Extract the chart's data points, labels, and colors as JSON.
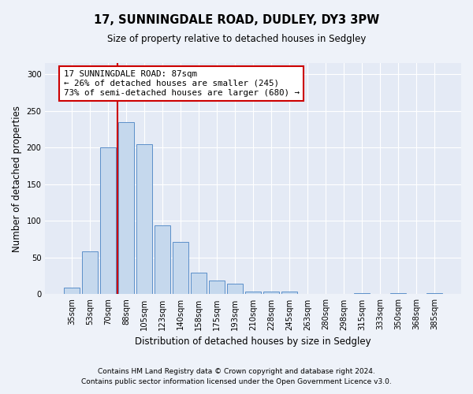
{
  "title1": "17, SUNNINGDALE ROAD, DUDLEY, DY3 3PW",
  "title2": "Size of property relative to detached houses in Sedgley",
  "xlabel": "Distribution of detached houses by size in Sedgley",
  "ylabel": "Number of detached properties",
  "categories": [
    "35sqm",
    "53sqm",
    "70sqm",
    "88sqm",
    "105sqm",
    "123sqm",
    "140sqm",
    "158sqm",
    "175sqm",
    "193sqm",
    "210sqm",
    "228sqm",
    "245sqm",
    "263sqm",
    "280sqm",
    "298sqm",
    "315sqm",
    "333sqm",
    "350sqm",
    "368sqm",
    "385sqm"
  ],
  "values": [
    9,
    58,
    200,
    234,
    204,
    94,
    71,
    29,
    19,
    14,
    4,
    4,
    4,
    0,
    0,
    0,
    2,
    0,
    2,
    0,
    2
  ],
  "bar_color": "#c5d8ed",
  "bar_edge_color": "#5b8fc9",
  "highlight_index": 3,
  "highlight_line_color": "#cc0000",
  "annotation_text": "17 SUNNINGDALE ROAD: 87sqm\n← 26% of detached houses are smaller (245)\n73% of semi-detached houses are larger (680) →",
  "annotation_box_color": "#ffffff",
  "annotation_box_edge": "#cc0000",
  "ylim": [
    0,
    315
  ],
  "yticks": [
    0,
    50,
    100,
    150,
    200,
    250,
    300
  ],
  "footer1": "Contains HM Land Registry data © Crown copyright and database right 2024.",
  "footer2": "Contains public sector information licensed under the Open Government Licence v3.0.",
  "bg_color": "#eef2f9",
  "plot_bg_color": "#e4eaf5"
}
